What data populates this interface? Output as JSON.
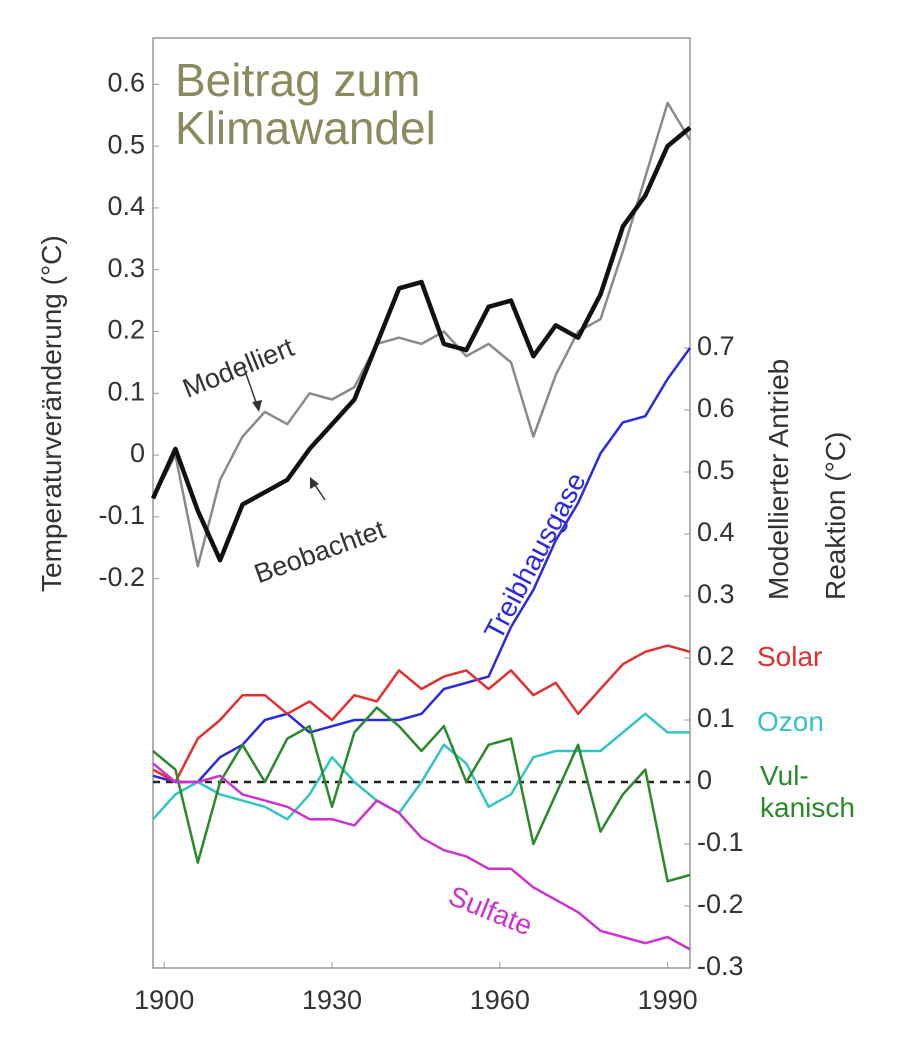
{
  "chart_data": {
    "type": "line",
    "title": "Beitrag zum Klimawandel",
    "ylabel": "Temperaturveränderung (°C)",
    "y2label": [
      "Modellierter Antrieb",
      "Reaktion (°C)"
    ],
    "x": [
      1898,
      1902,
      1906,
      1910,
      1914,
      1918,
      1922,
      1926,
      1930,
      1934,
      1938,
      1942,
      1946,
      1950,
      1954,
      1958,
      1962,
      1966,
      1970,
      1974,
      1978,
      1982,
      1986,
      1990,
      1994
    ],
    "xlim": [
      1898,
      1994
    ],
    "xticks": [
      1900,
      1930,
      1960,
      1990
    ],
    "ylim": [
      -0.83,
      0.675
    ],
    "yticks": [
      -0.2,
      -0.1,
      0,
      0.1,
      0.2,
      0.3,
      0.4,
      0.5,
      0.6
    ],
    "y2lim": [
      -0.3,
      1.2
    ],
    "y2ticks": [
      -0.3,
      -0.2,
      -0.1,
      0,
      0.1,
      0.2,
      0.3,
      0.4,
      0.5,
      0.6,
      0.7
    ],
    "series": [
      {
        "name": "Beobachtet",
        "color": "#111111",
        "values": [
          -0.07,
          0.01,
          -0.09,
          -0.17,
          -0.08,
          -0.06,
          -0.04,
          0.01,
          0.05,
          0.09,
          0.18,
          0.27,
          0.28,
          0.18,
          0.17,
          0.24,
          0.25,
          0.16,
          0.21,
          0.19,
          0.26,
          0.37,
          0.42,
          0.5,
          0.53
        ]
      },
      {
        "name": "Modelliert",
        "color": "#8a8a8a",
        "values": [
          -0.07,
          0.0,
          -0.18,
          -0.04,
          0.03,
          0.07,
          0.05,
          0.1,
          0.09,
          0.11,
          0.18,
          0.19,
          0.18,
          0.2,
          0.16,
          0.18,
          0.15,
          0.03,
          0.13,
          0.2,
          0.22,
          0.33,
          0.45,
          0.57,
          0.51
        ]
      },
      {
        "name": "Treibhausgase",
        "color": "#2b2bdc",
        "axis": "y2",
        "values": [
          0.01,
          0.0,
          0.0,
          0.04,
          0.06,
          0.1,
          0.11,
          0.08,
          0.09,
          0.1,
          0.1,
          0.1,
          0.11,
          0.15,
          0.16,
          0.17,
          0.25,
          0.31,
          0.39,
          0.45,
          0.53,
          0.58,
          0.59,
          0.65,
          0.7
        ]
      },
      {
        "name": "Solar",
        "color": "#e03030",
        "axis": "y2",
        "values": [
          0.02,
          0.0,
          0.07,
          0.1,
          0.14,
          0.14,
          0.11,
          0.13,
          0.1,
          0.14,
          0.13,
          0.18,
          0.15,
          0.17,
          0.18,
          0.15,
          0.18,
          0.14,
          0.16,
          0.11,
          0.15,
          0.19,
          0.21,
          0.22,
          0.21
        ]
      },
      {
        "name": "Ozon",
        "color": "#33c4c4",
        "axis": "y2",
        "values": [
          -0.06,
          -0.02,
          0.0,
          -0.02,
          -0.03,
          -0.04,
          -0.06,
          -0.02,
          0.04,
          0.0,
          -0.03,
          -0.05,
          0.0,
          0.06,
          0.03,
          -0.04,
          -0.02,
          0.04,
          0.05,
          0.05,
          0.05,
          0.08,
          0.11,
          0.08,
          0.08
        ]
      },
      {
        "name": "Vul-kanisch",
        "color": "#2a8a2a",
        "axis": "y2",
        "values": [
          0.05,
          0.02,
          -0.13,
          0.0,
          0.06,
          0.0,
          0.07,
          0.09,
          -0.04,
          0.08,
          0.12,
          0.09,
          0.05,
          0.09,
          0.0,
          0.06,
          0.07,
          -0.1,
          -0.02,
          0.06,
          -0.08,
          -0.02,
          0.02,
          -0.16,
          -0.15
        ]
      },
      {
        "name": "Sulfate",
        "color": "#cc33cc",
        "axis": "y2",
        "values": [
          0.03,
          0.0,
          0.0,
          0.01,
          -0.02,
          -0.03,
          -0.04,
          -0.06,
          -0.06,
          -0.07,
          -0.03,
          -0.05,
          -0.09,
          -0.11,
          -0.12,
          -0.14,
          -0.14,
          -0.17,
          -0.19,
          -0.21,
          -0.24,
          -0.25,
          -0.26,
          -0.25,
          -0.27
        ]
      }
    ]
  }
}
